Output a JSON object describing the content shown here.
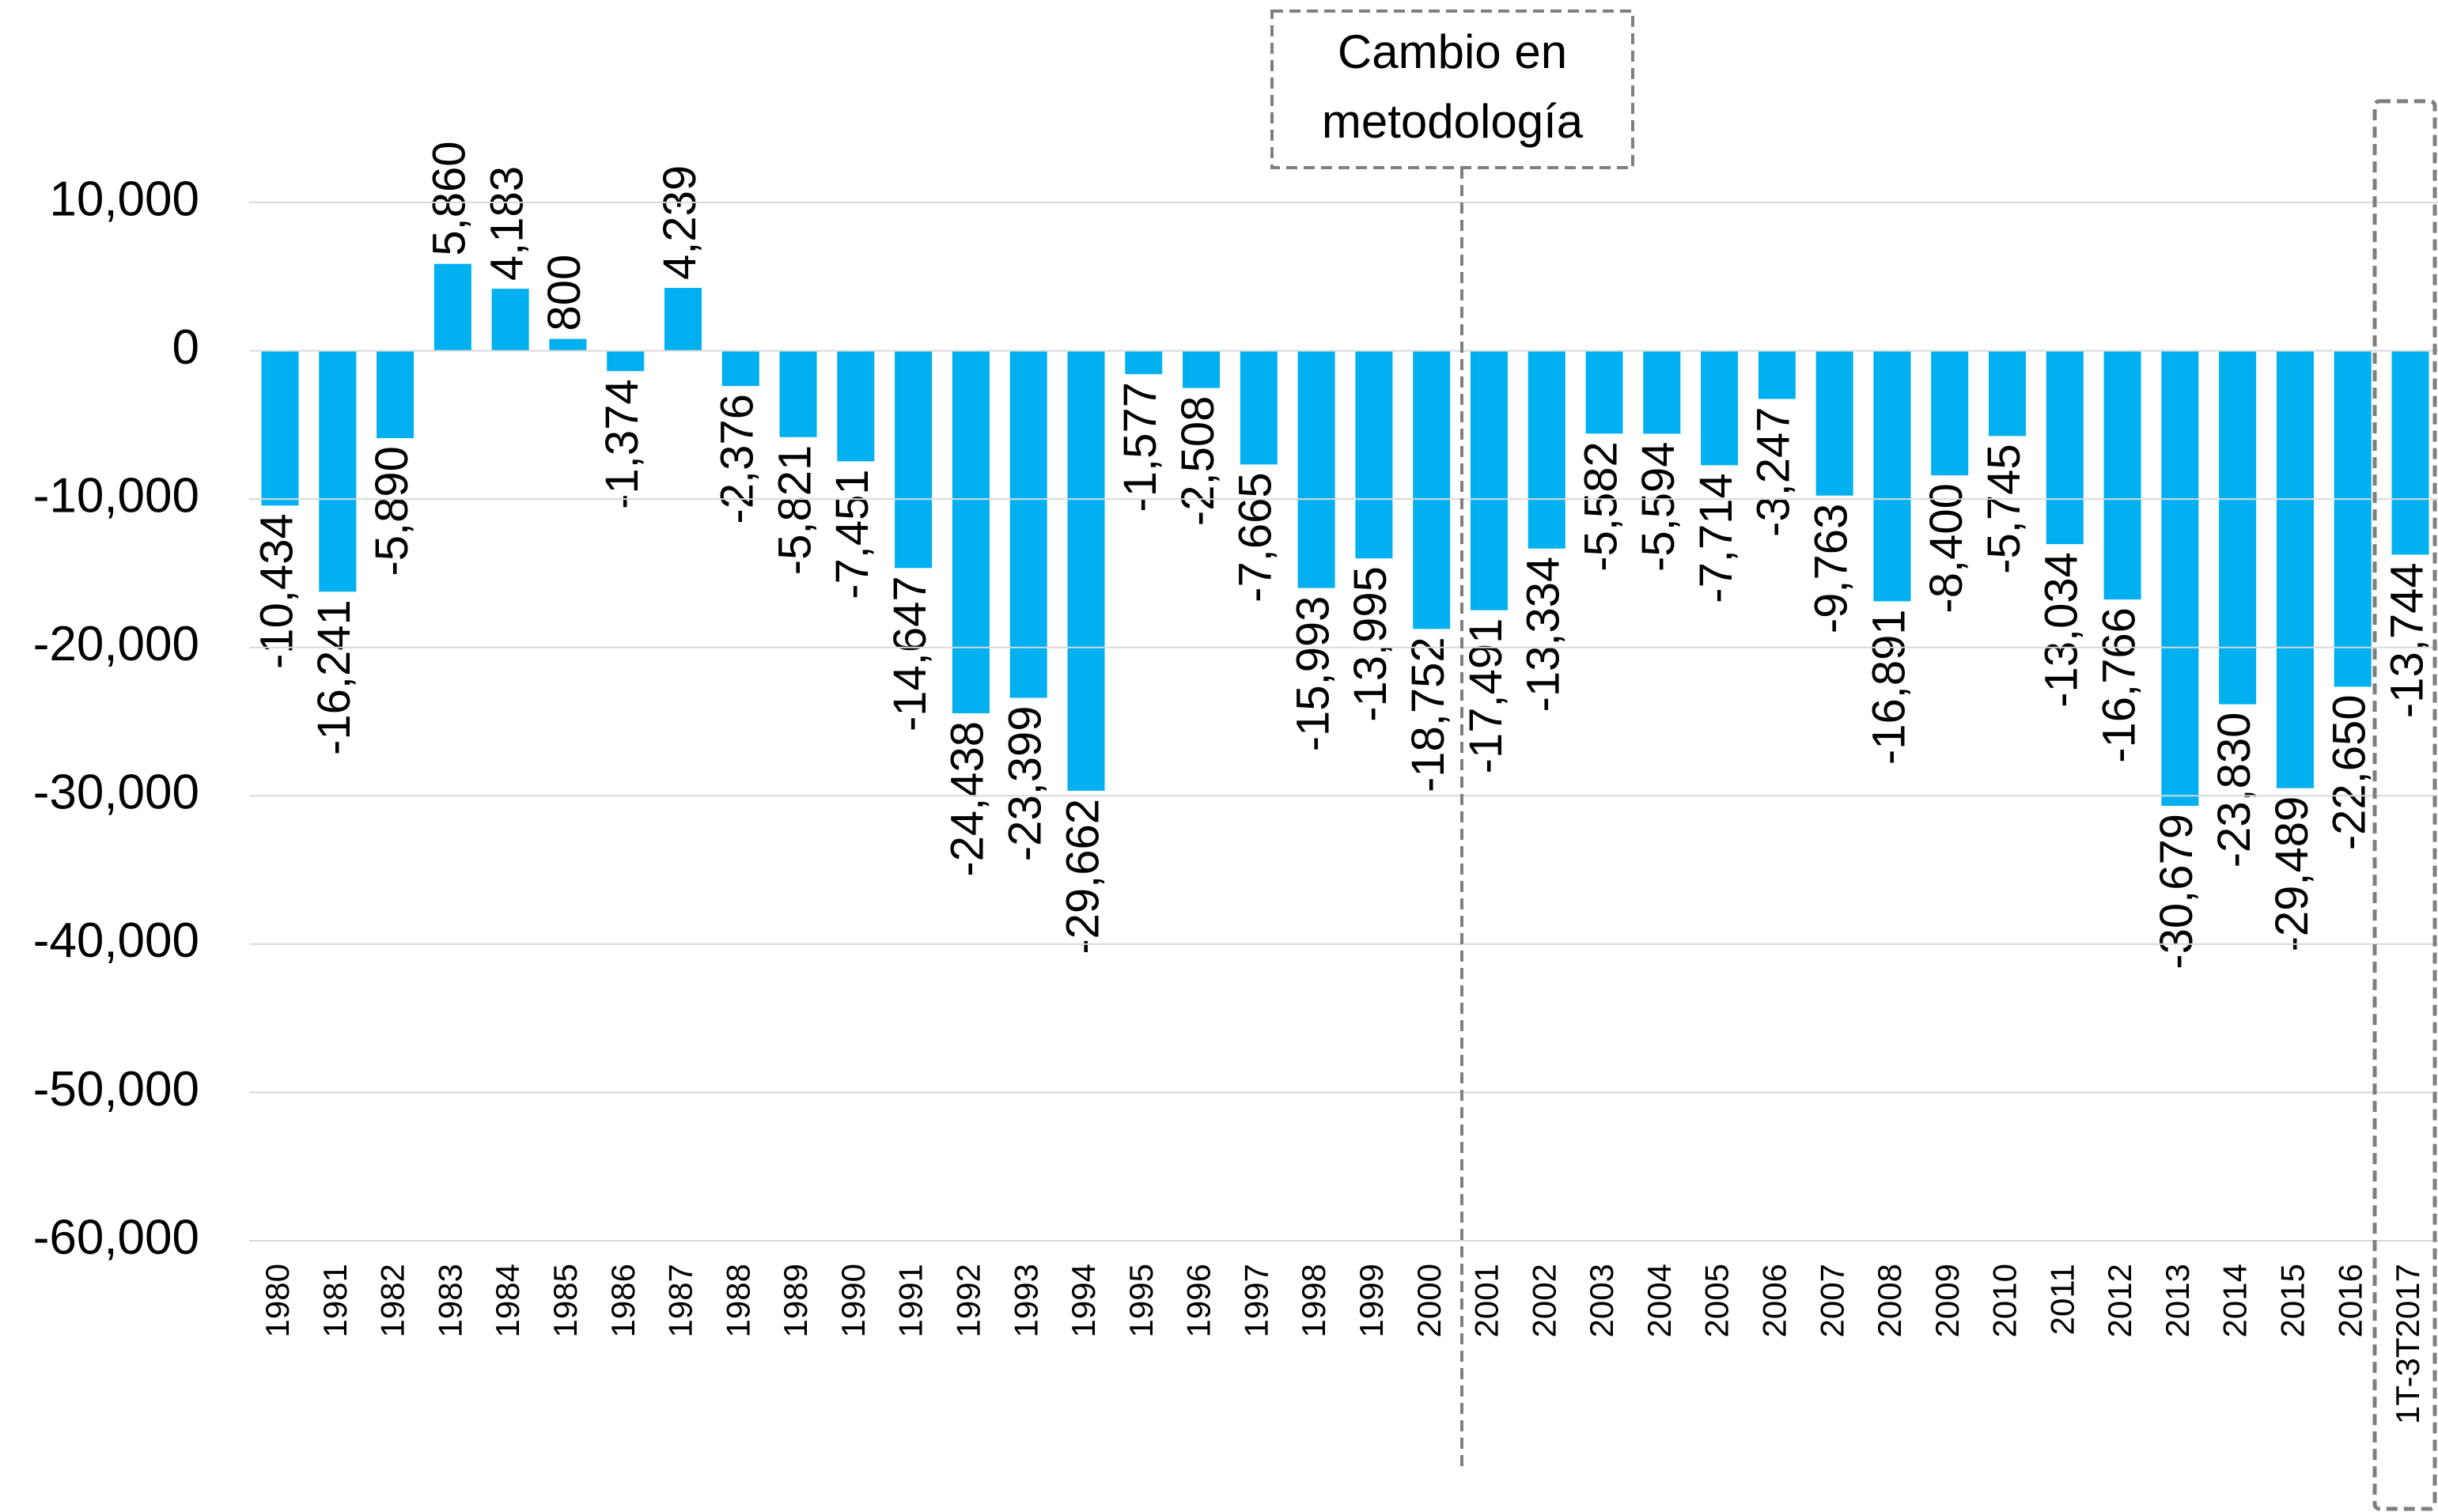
{
  "chart_data": {
    "type": "bar",
    "categories": [
      "1980",
      "1981",
      "1982",
      "1983",
      "1984",
      "1985",
      "1986",
      "1987",
      "1988",
      "1989",
      "1990",
      "1991",
      "1992",
      "1993",
      "1994",
      "1995",
      "1996",
      "1997",
      "1998",
      "1999",
      "2000",
      "2001",
      "2002",
      "2003",
      "2004",
      "2005",
      "2006",
      "2007",
      "2008",
      "2009",
      "2010",
      "2011",
      "2012",
      "2013",
      "2014",
      "2015",
      "2016",
      "1T-3T2017"
    ],
    "values": [
      -10434,
      -16241,
      -5890,
      5860,
      4183,
      800,
      -1374,
      4239,
      -2376,
      -5821,
      -7451,
      -14647,
      -24438,
      -23399,
      -29662,
      -1577,
      -2508,
      -7665,
      -15993,
      -13995,
      -18752,
      -17491,
      -13334,
      -5582,
      -5594,
      -7714,
      -3247,
      -9763,
      -16891,
      -8400,
      -5745,
      -13034,
      -16766,
      -30679,
      -23830,
      -29489,
      -22650,
      -13744
    ],
    "value_labels": [
      "-10,434",
      "-16,241",
      "-5,890",
      "5,860",
      "4,183",
      "800",
      "-1,374",
      "4,239",
      "-2,376",
      "-5,821",
      "-7,451",
      "-14,647",
      "-24,438",
      "-23,399",
      "-29,662",
      "-1,577",
      "-2,508",
      "-7,665",
      "-15,993",
      "-13,995",
      "-18,752",
      "-17,491",
      "-13,334",
      "-5,582",
      "-5,594",
      "-7,714",
      "-3,247",
      "-9,763",
      "-16,891",
      "-8,400",
      "-5,745",
      "-13,034",
      "-16,766",
      "-30,679",
      "-23,830",
      "-29,489",
      "-22,650",
      "-13,744"
    ],
    "color": "#00b0f0",
    "ylim": [
      -60000,
      10000
    ],
    "yticks": [
      {
        "value": -60000,
        "label": "-60,000"
      },
      {
        "value": -50000,
        "label": "-50,000"
      },
      {
        "value": -40000,
        "label": "-40,000"
      },
      {
        "value": -30000,
        "label": "-30,000"
      },
      {
        "value": -20000,
        "label": "-20,000"
      },
      {
        "value": -10000,
        "label": "-10,000"
      },
      0,
      {
        "value": 10000,
        "label": "10,000"
      }
    ],
    "grid": true,
    "annotations": [
      "Cambio en",
      "metodología"
    ]
  }
}
